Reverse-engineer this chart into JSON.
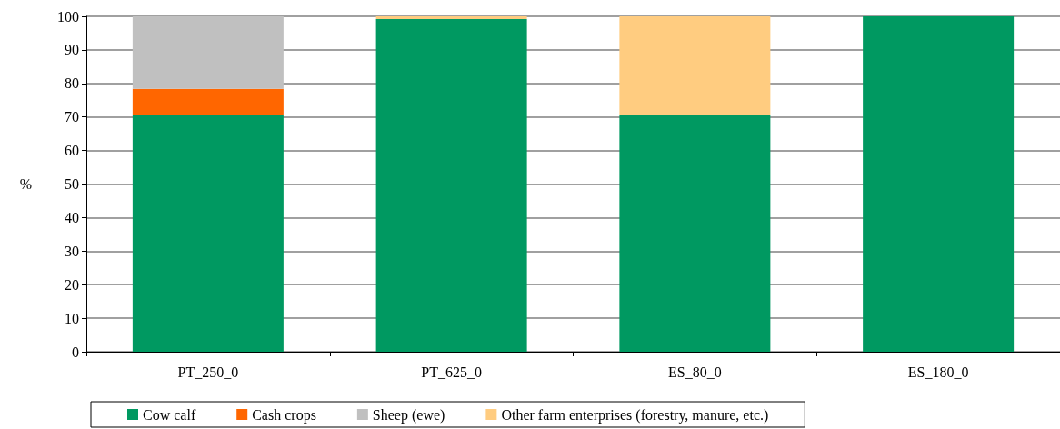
{
  "chart_data": {
    "type": "bar",
    "stacked": true,
    "ylabel": "%",
    "categories": [
      "PT_250_0",
      "PT_625_0",
      "ES_80_0",
      "ES_180_0"
    ],
    "series": [
      {
        "name": "Cow calf",
        "color": "#009961",
        "values": [
          70.6,
          99.2,
          70.6,
          100
        ]
      },
      {
        "name": "Cash crops",
        "color": "#ff6600",
        "values": [
          7.8,
          0,
          0,
          0
        ]
      },
      {
        "name": "Sheep (ewe)",
        "color": "#c0c0c0",
        "values": [
          21.6,
          0,
          0,
          0
        ]
      },
      {
        "name": "Other farm enterprises (forestry, manure, etc.)",
        "color": "#ffcc80",
        "values": [
          0,
          0.8,
          29.4,
          0
        ]
      }
    ],
    "ylim": [
      0,
      100
    ],
    "yticks": [
      0,
      10,
      20,
      30,
      40,
      50,
      60,
      70,
      80,
      90,
      100
    ],
    "grid": "y",
    "legend": "bottom"
  }
}
